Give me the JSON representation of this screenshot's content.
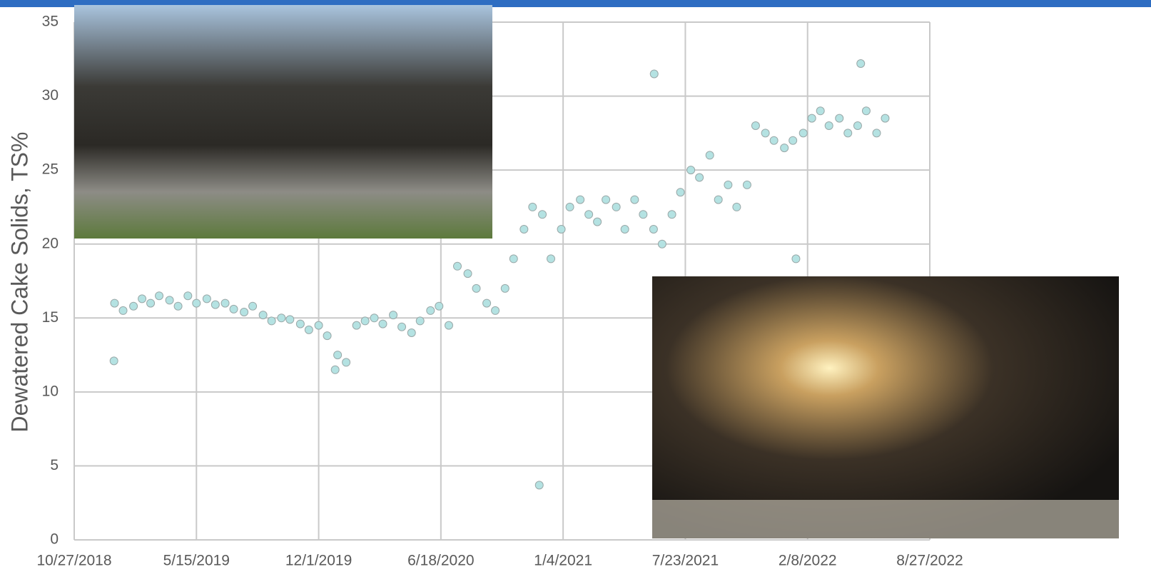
{
  "chart_data": {
    "type": "scatter",
    "y_label": "Dewatered Cake Solids, TS%",
    "color": "#b4e2e2",
    "xlim": [
      "2018-10-27",
      "2022-08-27"
    ],
    "xticks": [
      {
        "value": "2018-10-27",
        "label": "10/27/2018"
      },
      {
        "value": "2019-05-15",
        "label": "5/15/2019"
      },
      {
        "value": "2019-12-01",
        "label": "12/1/2019"
      },
      {
        "value": "2020-06-18",
        "label": "6/18/2020"
      },
      {
        "value": "2021-01-04",
        "label": "1/4/2021"
      },
      {
        "value": "2021-07-23",
        "label": "7/23/2021"
      },
      {
        "value": "2022-02-08",
        "label": "2/8/2022"
      },
      {
        "value": "2022-08-27",
        "label": "8/27/2022"
      }
    ],
    "ylim": [
      0,
      35
    ],
    "yticks": [
      0,
      5,
      10,
      15,
      20,
      25,
      30,
      35
    ],
    "grid": true,
    "x": [
      "2019-01-01",
      "2019-01-15",
      "2019-02-01",
      "2019-02-15",
      "2019-03-01",
      "2019-03-15",
      "2019-04-01",
      "2019-04-15",
      "2019-05-01",
      "2019-05-15",
      "2019-06-01",
      "2019-06-15",
      "2019-07-01",
      "2019-07-15",
      "2019-08-01",
      "2019-08-15",
      "2019-09-01",
      "2019-09-15",
      "2019-10-01",
      "2019-10-15",
      "2019-11-01",
      "2019-11-15",
      "2019-12-01",
      "2019-12-15",
      "2020-01-01",
      "2020-01-15",
      "2020-02-01",
      "2020-02-15",
      "2020-03-01",
      "2020-03-15",
      "2020-04-01",
      "2020-04-15",
      "2020-05-01",
      "2020-05-15",
      "2020-06-01",
      "2020-06-15",
      "2020-07-01",
      "2020-07-15",
      "2020-08-01",
      "2020-08-15",
      "2020-09-01",
      "2020-09-15",
      "2020-10-01",
      "2020-10-15",
      "2020-11-01",
      "2020-11-15",
      "2020-12-01",
      "2020-12-15",
      "2021-01-01",
      "2021-01-15",
      "2021-02-01",
      "2021-02-15",
      "2021-03-01",
      "2021-03-15",
      "2021-04-01",
      "2021-04-15",
      "2021-05-01",
      "2021-05-15",
      "2021-06-01",
      "2021-06-15",
      "2021-07-01",
      "2021-07-15",
      "2021-08-01",
      "2021-08-15",
      "2021-09-01",
      "2021-09-15",
      "2021-10-01",
      "2021-10-15",
      "2021-11-01",
      "2021-11-15",
      "2021-12-01",
      "2021-12-15",
      "2022-01-01",
      "2022-01-15",
      "2022-02-01",
      "2022-02-15",
      "2022-03-01",
      "2022-03-15",
      "2022-04-01",
      "2022-04-15",
      "2022-05-01",
      "2022-05-15",
      "2022-06-01",
      "2022-06-15",
      "2018-12-31",
      "2021-06-02",
      "2022-05-06",
      "2020-11-26",
      "2022-01-20",
      "2019-12-28"
    ],
    "values": [
      16,
      15.5,
      15.8,
      16.3,
      16,
      16.5,
      16.2,
      15.8,
      16.5,
      16,
      16.3,
      15.9,
      16,
      15.6,
      15.4,
      15.8,
      15.2,
      14.8,
      15,
      14.9,
      14.6,
      14.2,
      14.5,
      13.8,
      12.5,
      12,
      14.5,
      14.8,
      15,
      14.6,
      15.2,
      14.4,
      14,
      14.8,
      15.5,
      15.8,
      14.5,
      18.5,
      18,
      17,
      16,
      15.5,
      17,
      19,
      21,
      22.5,
      22,
      19,
      21,
      22.5,
      23,
      22,
      21.5,
      23,
      22.5,
      21,
      23,
      22,
      21,
      20,
      22,
      23.5,
      25,
      24.5,
      26,
      23,
      24,
      22.5,
      24,
      28,
      27.5,
      27,
      26.5,
      27,
      27.5,
      28.5,
      29,
      28,
      28.5,
      27.5,
      28,
      29,
      27.5,
      28.5,
      12.1,
      31.5,
      32.2,
      3.7,
      19,
      11.5
    ]
  }
}
